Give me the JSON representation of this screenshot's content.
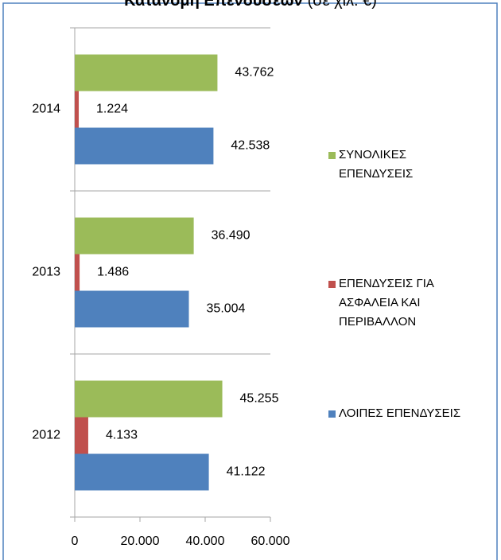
{
  "chart_data": {
    "type": "bar",
    "title": "Κατανομή Επενδύσεων",
    "subtitle": "(σε χιλ. €)",
    "orientation": "horizontal",
    "categories": [
      "2012",
      "2013",
      "2014"
    ],
    "series": [
      {
        "name": "ΛΟΙΠΕΣ ΕΠΕΝΔΥΣΕΙΣ",
        "color": "#4f81bd",
        "values": [
          41122,
          35004,
          42538
        ],
        "value_labels": [
          "41.122",
          "35.004",
          "42.538"
        ]
      },
      {
        "name": "ΕΠΕΝΔΥΣΕΙΣ ΓΙΑ ΑΣΦΑΛΕΙΑ ΚΑΙ ΠΕΡΙΒΑΛΛΟΝ",
        "color": "#c0504d",
        "values": [
          4133,
          1486,
          1224
        ],
        "value_labels": [
          "4.133",
          "1.486",
          "1.224"
        ]
      },
      {
        "name": "ΣΥΝΟΛΙΚΕΣ ΕΠΕΝΔΥΣΕΙΣ",
        "color": "#9bbb59",
        "values": [
          45255,
          36490,
          43762
        ],
        "value_labels": [
          "45.255",
          "36.490",
          "43.762"
        ]
      }
    ],
    "xlim": [
      0,
      60000
    ],
    "xticks": [
      0,
      {
        "value": 20000,
        "label": "20.000"
      },
      {
        "value": 40000,
        "label": "40.000"
      },
      {
        "value": 60000,
        "label": "60.000"
      }
    ],
    "legend": "right"
  }
}
